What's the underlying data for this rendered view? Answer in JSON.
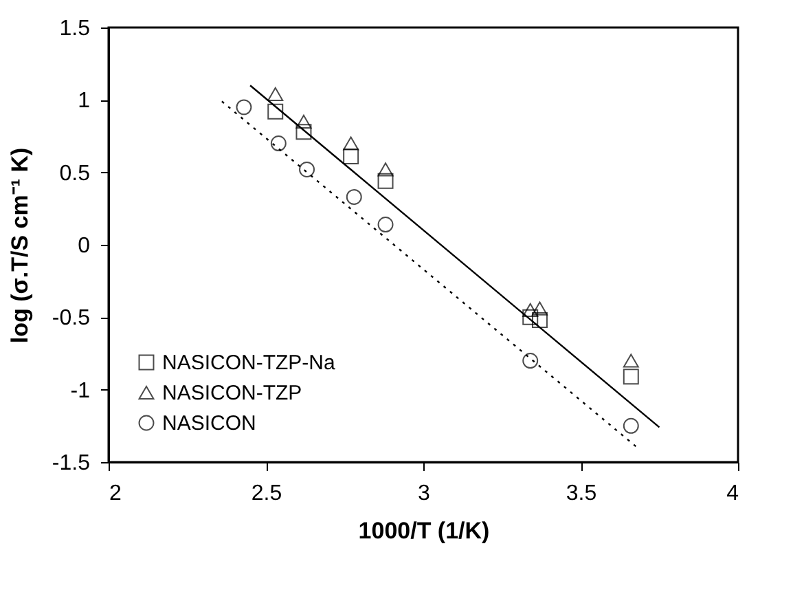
{
  "chart_data": {
    "type": "scatter",
    "xlabel": "1000/T (1/K)",
    "ylabel": "log (σ.T/S cm⁻¹ K)",
    "xlim": [
      2,
      4
    ],
    "xticks": [
      2,
      2.5,
      3,
      3.5,
      4
    ],
    "ylim": [
      -1.5,
      1.5
    ],
    "yticks": [
      -1.5,
      -1,
      -0.5,
      0,
      0.5,
      1,
      1.5
    ],
    "grid": false,
    "legend": "bottom left",
    "series": [
      {
        "name": "NASICON-TZP-Na",
        "color": "#000000",
        "marker": "square",
        "x": [
          2.53,
          2.62,
          2.77,
          2.88,
          3.34,
          3.37,
          3.66
        ],
        "values": [
          0.92,
          0.78,
          0.61,
          0.44,
          -0.5,
          -0.52,
          -0.91
        ]
      },
      {
        "name": "NASICON-TZP",
        "color": "#000000",
        "marker": "triangle",
        "x": [
          2.53,
          2.62,
          2.77,
          2.88,
          3.34,
          3.37,
          3.66
        ],
        "values": [
          1.04,
          0.85,
          0.7,
          0.52,
          -0.45,
          -0.44,
          -0.8
        ]
      },
      {
        "name": "NASICON",
        "color": "#000000",
        "marker": "circle",
        "x": [
          2.43,
          2.54,
          2.63,
          2.78,
          2.88,
          3.34,
          3.66
        ],
        "values": [
          0.95,
          0.7,
          0.52,
          0.33,
          0.14,
          -0.8,
          -1.25
        ]
      },
      {
        "type": "line",
        "color": "#000000",
        "line_style": "solid",
        "marker": "none",
        "x": [
          2.45,
          3.75
        ],
        "values": [
          1.1,
          -1.26
        ]
      },
      {
        "type": "line",
        "color": "#000000",
        "line_style": "dotted",
        "marker": "none",
        "x": [
          2.36,
          3.68
        ],
        "values": [
          0.99,
          -1.4
        ]
      }
    ]
  }
}
